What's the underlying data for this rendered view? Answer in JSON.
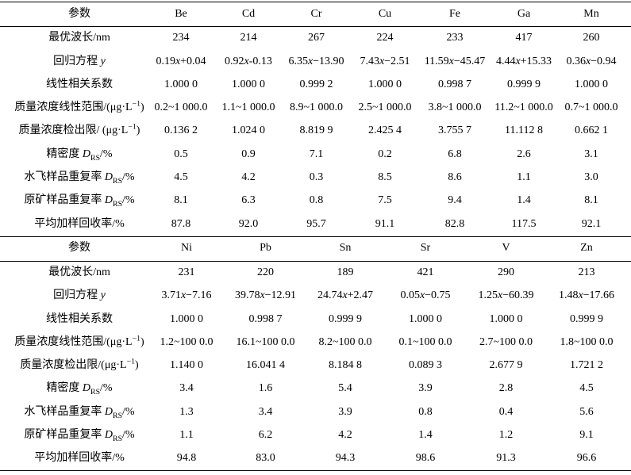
{
  "tables": [
    {
      "param_header": "参数",
      "elements": [
        "Be",
        "Cd",
        "Cr",
        "Cu",
        "Fe",
        "Ga",
        "Mn"
      ],
      "rows": [
        {
          "label": {
            "text": "最优波长/nm"
          },
          "values": [
            "234",
            "214",
            "267",
            "224",
            "233",
            "417",
            "260"
          ]
        },
        {
          "label": {
            "text": "回归方程 ",
            "sym": "y"
          },
          "values": [
            "0.19x+0.04",
            "0.92x-0.13",
            "6.35x−13.90",
            "7.43x−2.51",
            "11.59x−45.47",
            "4.44x+15.33",
            "0.36x−0.94"
          ]
        },
        {
          "label": {
            "text": "线性相关系数"
          },
          "values": [
            "1.000 0",
            "1.000 0",
            "0.999 2",
            "1.000 0",
            "0.998 7",
            "0.999 9",
            "1.000 0"
          ]
        },
        {
          "label": {
            "text": "质量浓度线性范围/(μg·L",
            "sup": "−1",
            "unit": ")"
          },
          "values": [
            "0.2~1 000.0",
            "1.1~1 000.0",
            "8.9~1 000.0",
            "2.5~1 000.0",
            "3.8~1 000.0",
            "11.2~1 000.0",
            "0.7~1 000.0"
          ]
        },
        {
          "label": {
            "text": "质量浓度检出限/ (μg·L",
            "sup": "−1",
            "unit": ")"
          },
          "values": [
            "0.136 2",
            "1.024 0",
            "8.819 9",
            "2.425 4",
            "3.755 7",
            "11.112 8",
            "0.662 1"
          ]
        },
        {
          "label": {
            "text": "精密度 ",
            "sym": "D",
            "sub": "RS",
            "unit": "/%"
          },
          "values": [
            "0.5",
            "0.9",
            "7.1",
            "0.2",
            "6.8",
            "2.6",
            "3.1"
          ]
        },
        {
          "label": {
            "text": "水飞样品重复率 ",
            "sym": "D",
            "sub": "RS",
            "unit": "/%"
          },
          "values": [
            "4.5",
            "4.2",
            "0.3",
            "8.5",
            "8.6",
            "1.1",
            "3.0"
          ]
        },
        {
          "label": {
            "text": "原矿样品重复率 ",
            "sym": "D",
            "sub": "RS",
            "unit": "/%"
          },
          "values": [
            "8.1",
            "6.3",
            "0.8",
            "7.5",
            "9.4",
            "1.4",
            "8.1"
          ]
        },
        {
          "label": {
            "text": "平均加样回收率/%"
          },
          "values": [
            "87.8",
            "92.0",
            "95.7",
            "91.1",
            "82.8",
            "117.5",
            "92.1"
          ]
        }
      ]
    },
    {
      "param_header": "参数",
      "elements": [
        "Ni",
        "Pb",
        "Sn",
        "Sr",
        "V",
        "Zn"
      ],
      "rows": [
        {
          "label": {
            "text": "最优波长/nm"
          },
          "values": [
            "231",
            "220",
            "189",
            "421",
            "290",
            "213"
          ]
        },
        {
          "label": {
            "text": "回归方程 ",
            "sym": "y"
          },
          "values": [
            "3.71x−7.16",
            "39.78x−12.91",
            "24.74x+2.47",
            "0.05x−0.75",
            "1.25x−60.39",
            "1.48x−17.66"
          ]
        },
        {
          "label": {
            "text": "线性相关系数"
          },
          "values": [
            "1.000 0",
            "0.998 7",
            "0.999 9",
            "1.000 0",
            "1.000 0",
            "0.999 9"
          ]
        },
        {
          "label": {
            "text": "质量浓度线性范围/(μg·L",
            "sup": "−1",
            "unit": ")"
          },
          "values": [
            "1.2~100 0.0",
            "16.1~100 0.0",
            "8.2~100 0.0",
            "0.1~100 0.0",
            "2.7~100 0.0",
            "1.8~100 0.0"
          ]
        },
        {
          "label": {
            "text": "质量浓度检出限/(μg·L",
            "sup": "−1",
            "unit": ")"
          },
          "values": [
            "1.140 0",
            "16.041 4",
            "8.184 8",
            "0.089 3",
            "2.677 9",
            "1.721 2"
          ]
        },
        {
          "label": {
            "text": "精密度 ",
            "sym": "D",
            "sub": "RS",
            "unit": "/%"
          },
          "values": [
            "3.4",
            "1.6",
            "5.4",
            "3.9",
            "2.8",
            "4.5"
          ]
        },
        {
          "label": {
            "text": "水飞样品重复率 ",
            "sym": "D",
            "sub": "RS",
            "unit": "/%"
          },
          "values": [
            "1.3",
            "3.4",
            "3.9",
            "0.8",
            "0.4",
            "5.6"
          ]
        },
        {
          "label": {
            "text": "原矿样品重复率 ",
            "sym": "D",
            "sub": "RS",
            "unit": "/%"
          },
          "values": [
            "1.1",
            "6.2",
            "4.2",
            "1.4",
            "1.2",
            "9.1"
          ]
        },
        {
          "label": {
            "text": "平均加样回收率/%"
          },
          "values": [
            "94.8",
            "83.0",
            "94.3",
            "98.6",
            "91.3",
            "96.6"
          ]
        }
      ]
    }
  ]
}
